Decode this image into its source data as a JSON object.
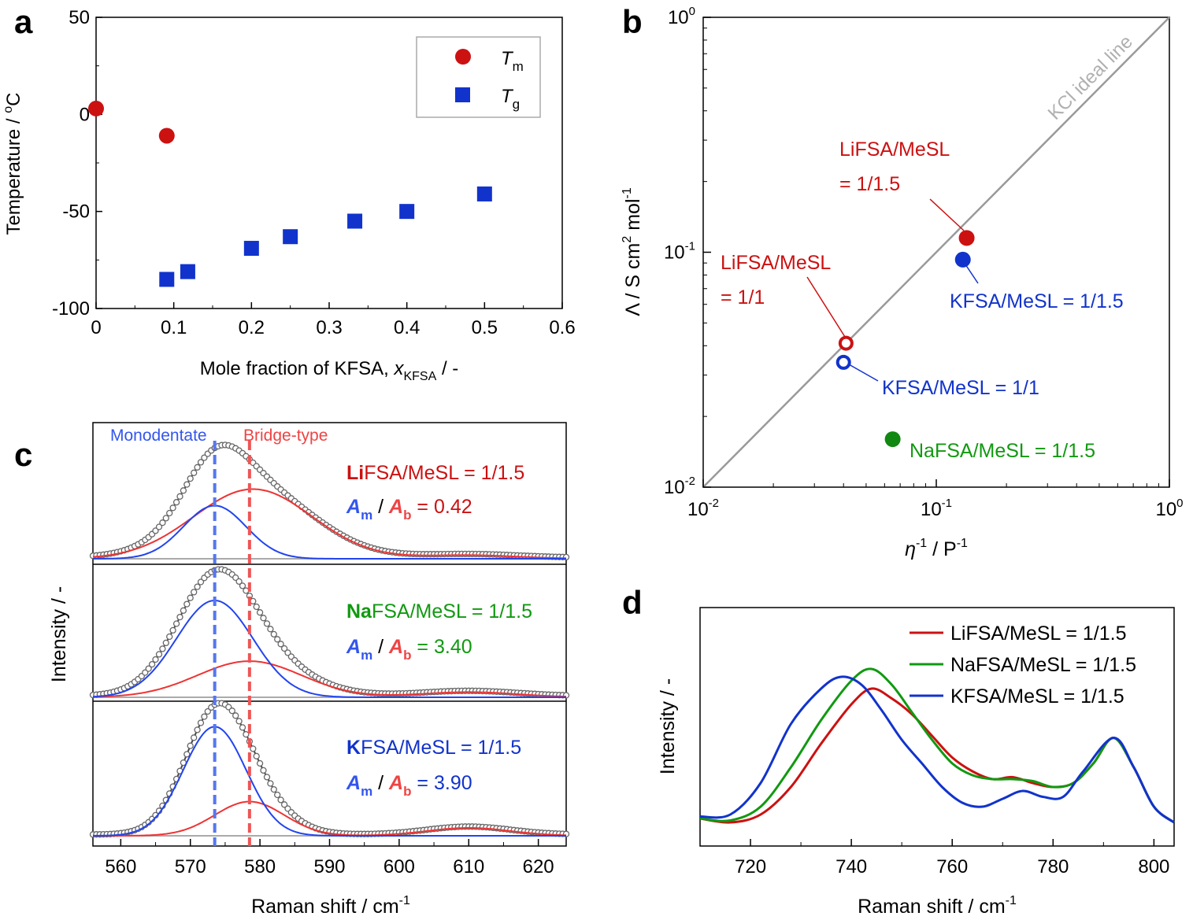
{
  "panels": {
    "a": {
      "letter": "a"
    },
    "b": {
      "letter": "b"
    },
    "c": {
      "letter": "c"
    },
    "d": {
      "letter": "d"
    }
  },
  "chart_data": [
    {
      "id": "a",
      "type": "scatter",
      "xlabel": "Mole fraction of KFSA, ",
      "xlabel_var": "x",
      "xlabel_sub": "KFSA",
      "xlabel_tail": " / -",
      "ylabel": "Temperature / ",
      "ylabel_sup": "o",
      "ylabel_tail": "C",
      "xlim": [
        0,
        0.6
      ],
      "ylim": [
        -100,
        50
      ],
      "xticks": [
        "0",
        "0.1",
        "0.2",
        "0.3",
        "0.4",
        "0.5",
        "0.6"
      ],
      "yticks": [
        "-100",
        "-50",
        "0",
        "50"
      ],
      "legend": "top-right",
      "series": [
        {
          "name": "T",
          "sub": "m",
          "marker": "circle",
          "color": "#cc1111",
          "x": [
            0,
            0.091
          ],
          "y": [
            3,
            -11
          ]
        },
        {
          "name": "T",
          "sub": "g",
          "marker": "square",
          "color": "#1133cc",
          "x": [
            0.091,
            0.118,
            0.2,
            0.25,
            0.333,
            0.4,
            0.5
          ],
          "y": [
            -85,
            -81,
            -69,
            -63,
            -55,
            -50,
            -41
          ]
        }
      ]
    },
    {
      "id": "b",
      "type": "scatter",
      "xscale": "log",
      "yscale": "log",
      "xlabel": "η",
      "xlabel_sup": "-1",
      "xlabel_tail": " / P",
      "xlabel_sup2": "-1",
      "ylabel": "Λ / S cm",
      "ylabel_sup": "2",
      "ylabel_mid": " mol",
      "ylabel_sup2": "-1",
      "xlim": [
        0.01,
        1
      ],
      "ylim": [
        0.01,
        1
      ],
      "ideal_line_label": "KCl ideal line",
      "points": [
        {
          "label1": "LiFSA/MeSL",
          "label2": "= 1/1.5",
          "x": 0.135,
          "y": 0.115,
          "color": "#cc1111",
          "filled": true
        },
        {
          "label1": "KFSA/MeSL = 1/1.5",
          "label2": "",
          "x": 0.13,
          "y": 0.093,
          "color": "#1133cc",
          "filled": true
        },
        {
          "label1": "LiFSA/MeSL",
          "label2": "= 1/1",
          "x": 0.041,
          "y": 0.041,
          "color": "#cc1111",
          "filled": false
        },
        {
          "label1": "KFSA/MeSL = 1/1",
          "label2": "",
          "x": 0.04,
          "y": 0.034,
          "color": "#1133cc",
          "filled": false
        },
        {
          "label1": "NaFSA/MeSL = 1/1.5",
          "label2": "",
          "x": 0.065,
          "y": 0.016,
          "color": "#118811",
          "filled": true
        }
      ]
    },
    {
      "id": "c",
      "type": "line",
      "xlabel": "Raman shift / cm",
      "xlabel_sup": "-1",
      "ylabel": "Intensity / -",
      "xlim": [
        556,
        624
      ],
      "xticks": [
        560,
        570,
        580,
        590,
        600,
        610,
        620
      ],
      "monodentate_label": "Monodentate",
      "monodentate_x": 573.5,
      "bridge_label": "Bridge-type",
      "bridge_x": 578.5,
      "ratio_labels": {
        "m": "A",
        "m_sub": "m",
        "sep": " / ",
        "b": "A",
        "b_sub": "b"
      },
      "subpanels": [
        {
          "cation": "Li",
          "rest": "FSA/MeSL = 1/1.5",
          "ratio": " = 0.42",
          "color": "#cc1111",
          "mono": {
            "center": 573.5,
            "width": 4.5,
            "amp": 0.45
          },
          "bridge": {
            "center": 579,
            "width": 8.5,
            "amp": 0.59
          },
          "tail": {
            "center": 610,
            "width": 7,
            "amp": 0.03
          }
        },
        {
          "cation": "Na",
          "rest": "FSA/MeSL = 1/1.5",
          "ratio": " = 3.40",
          "color": "#119911",
          "mono": {
            "center": 573.5,
            "width": 5.5,
            "amp": 0.75
          },
          "bridge": {
            "center": 578.5,
            "width": 7.5,
            "amp": 0.28
          },
          "tail": {
            "center": 610,
            "width": 7,
            "amp": 0.04
          }
        },
        {
          "cation": "K",
          "rest": "FSA/MeSL = 1/1.5",
          "ratio": " = 3.90",
          "color": "#1133cc",
          "mono": {
            "center": 573.5,
            "width": 4.5,
            "amp": 0.83
          },
          "bridge": {
            "center": 578.5,
            "width": 5,
            "amp": 0.26
          },
          "tail": {
            "center": 610,
            "width": 6,
            "amp": 0.06
          }
        }
      ]
    },
    {
      "id": "d",
      "type": "line",
      "xlabel": "Raman shift / cm",
      "xlabel_sup": "-1",
      "ylabel": "Intensity / -",
      "xlim": [
        710,
        804
      ],
      "xticks": [
        720,
        740,
        760,
        780,
        800
      ],
      "legend": "top-right",
      "series": [
        {
          "name": "LiFSA/MeSL = 1/1.5",
          "color": "#cc1111",
          "x": [
            710,
            716,
            722,
            728,
            734,
            740,
            744,
            748,
            752,
            756,
            760,
            764,
            768,
            772,
            776,
            780,
            784,
            788,
            792,
            796,
            800,
            804
          ],
          "y": [
            0.02,
            0.0,
            0.04,
            0.18,
            0.4,
            0.6,
            0.68,
            0.63,
            0.55,
            0.44,
            0.33,
            0.26,
            0.22,
            0.23,
            0.2,
            0.18,
            0.2,
            0.3,
            0.43,
            0.28,
            0.08,
            0.0
          ]
        },
        {
          "name": "NaFSA/MeSL = 1/1.5",
          "color": "#119911",
          "x": [
            710,
            716,
            722,
            728,
            734,
            740,
            744,
            748,
            752,
            756,
            760,
            764,
            768,
            772,
            776,
            780,
            784,
            788,
            792,
            796,
            800,
            804
          ],
          "y": [
            0.02,
            0.01,
            0.08,
            0.28,
            0.52,
            0.72,
            0.78,
            0.7,
            0.56,
            0.42,
            0.3,
            0.24,
            0.22,
            0.22,
            0.21,
            0.18,
            0.2,
            0.3,
            0.43,
            0.28,
            0.08,
            0.0
          ]
        },
        {
          "name": "KFSA/MeSL = 1/1.5",
          "color": "#1133cc",
          "x": [
            710,
            716,
            722,
            728,
            734,
            738,
            742,
            746,
            750,
            754,
            758,
            762,
            766,
            770,
            774,
            778,
            782,
            786,
            792,
            796,
            800,
            804
          ],
          "y": [
            0.03,
            0.04,
            0.2,
            0.5,
            0.68,
            0.74,
            0.7,
            0.57,
            0.42,
            0.3,
            0.18,
            0.1,
            0.08,
            0.12,
            0.16,
            0.13,
            0.13,
            0.26,
            0.43,
            0.28,
            0.08,
            0.0
          ]
        }
      ]
    }
  ]
}
